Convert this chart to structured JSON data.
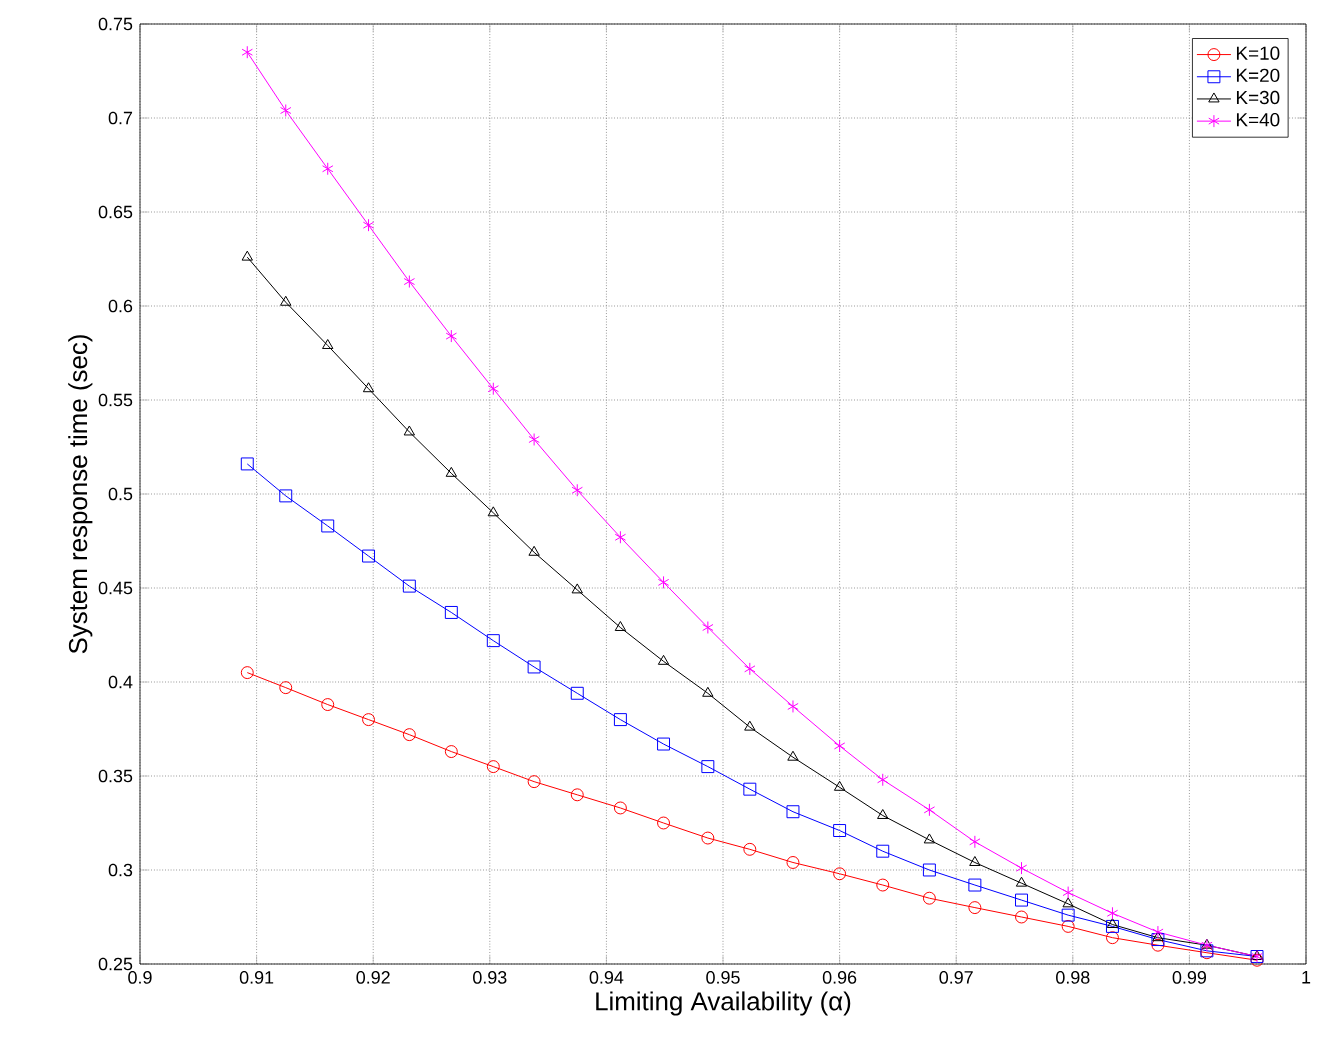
{
  "chart_data": {
    "type": "line",
    "xlabel": "Limiting Availability (α)",
    "ylabel": "System response time (sec)",
    "x": [
      0.9092,
      0.9125,
      0.9161,
      0.9196,
      0.9231,
      0.9267,
      0.9303,
      0.9338,
      0.9375,
      0.9412,
      0.9449,
      0.9487,
      0.9523,
      0.956,
      0.96,
      0.9637,
      0.9677,
      0.9716,
      0.9756,
      0.9796,
      0.9834,
      0.9873,
      0.9915,
      0.9958
    ],
    "series": [
      {
        "name": "K=10",
        "color": "#ff0000",
        "marker": "circle",
        "values": [
          0.405,
          0.397,
          0.388,
          0.38,
          0.372,
          0.363,
          0.355,
          0.347,
          0.34,
          0.333,
          0.325,
          0.317,
          0.311,
          0.304,
          0.298,
          0.292,
          0.285,
          0.28,
          0.275,
          0.27,
          0.264,
          0.26,
          0.256,
          0.252
        ]
      },
      {
        "name": "K=20",
        "color": "#0000ff",
        "marker": "square",
        "values": [
          0.516,
          0.499,
          0.483,
          0.467,
          0.451,
          0.437,
          0.422,
          0.408,
          0.394,
          0.38,
          0.367,
          0.355,
          0.343,
          0.331,
          0.321,
          0.31,
          0.3,
          0.292,
          0.284,
          0.276,
          0.27,
          0.263,
          0.257,
          0.254
        ]
      },
      {
        "name": "K=30",
        "color": "#000000",
        "marker": "triangle",
        "values": [
          0.626,
          0.602,
          0.579,
          0.556,
          0.533,
          0.511,
          0.49,
          0.469,
          0.449,
          0.429,
          0.411,
          0.394,
          0.376,
          0.36,
          0.344,
          0.329,
          0.316,
          0.304,
          0.293,
          0.282,
          0.271,
          0.264,
          0.26,
          0.254
        ]
      },
      {
        "name": "K=40",
        "color": "#ff00ff",
        "marker": "cross",
        "values": [
          0.735,
          0.704,
          0.673,
          0.643,
          0.613,
          0.584,
          0.556,
          0.529,
          0.502,
          0.477,
          0.453,
          0.429,
          0.407,
          0.387,
          0.366,
          0.348,
          0.332,
          0.315,
          0.301,
          0.288,
          0.277,
          0.267,
          0.26,
          0.254
        ]
      }
    ],
    "xlim": [
      0.9,
      1
    ],
    "ylim": [
      0.25,
      0.75
    ],
    "xticks": [
      0.9,
      0.91,
      0.92,
      0.93,
      0.94,
      0.95,
      0.96,
      0.97,
      0.98,
      0.99,
      1
    ],
    "yticks": [
      0.25,
      0.3,
      0.35,
      0.4,
      0.45,
      0.5,
      0.55,
      0.6,
      0.65,
      0.7,
      0.75
    ],
    "grid": true,
    "legend": "top right"
  }
}
